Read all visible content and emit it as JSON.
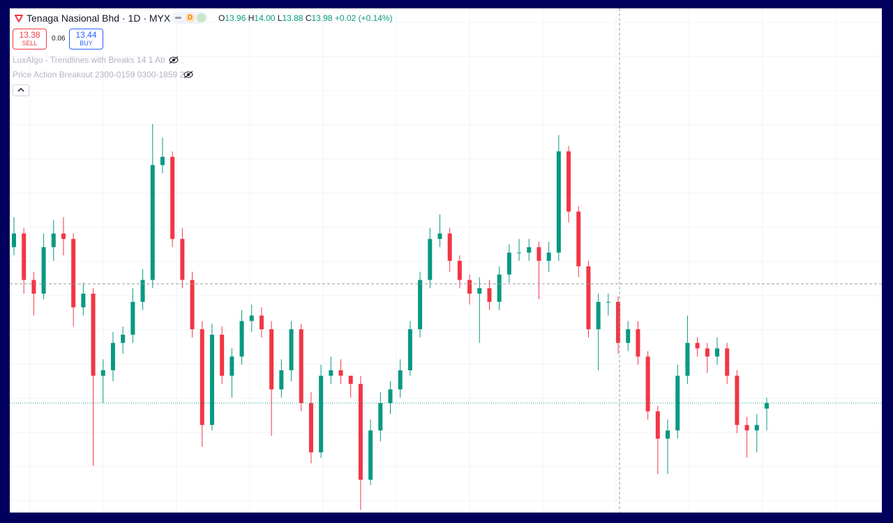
{
  "header": {
    "symbol": "Tenaga Nasional Bhd · 1D · MYX",
    "interval_badge": "D",
    "ohlc": {
      "o_label": "O",
      "o": "13.96",
      "h_label": "H",
      "h": "14.00",
      "l_label": "L",
      "l": "13.88",
      "c_label": "C",
      "c": "13.98",
      "change": "+0.02 (+0.14%)"
    },
    "sell": {
      "price": "13.38",
      "label": "SELL"
    },
    "spread": "0.06",
    "buy": {
      "price": "13.44",
      "label": "BUY"
    }
  },
  "indicators": [
    "LuxAlgo - Trendlines with Breaks 14 1 Atr",
    "Price Action Breakout 2300-0159 0300-1859 2"
  ],
  "chart_data": {
    "type": "candlestick",
    "up_color": "#089981",
    "down_color": "#f23645",
    "ylim": [
      13.58,
      15.02
    ],
    "candles": [
      [
        14.55,
        14.66,
        14.52,
        14.6
      ],
      [
        14.6,
        14.62,
        14.38,
        14.43
      ],
      [
        14.43,
        14.46,
        14.3,
        14.38
      ],
      [
        14.38,
        14.6,
        14.36,
        14.55
      ],
      [
        14.55,
        14.65,
        14.5,
        14.6
      ],
      [
        14.6,
        14.66,
        14.52,
        14.58
      ],
      [
        14.58,
        14.6,
        14.26,
        14.33
      ],
      [
        14.33,
        14.42,
        14.3,
        14.38
      ],
      [
        14.38,
        14.4,
        13.75,
        14.08
      ],
      [
        14.08,
        14.14,
        13.98,
        14.1
      ],
      [
        14.1,
        14.24,
        14.06,
        14.2
      ],
      [
        14.2,
        14.26,
        14.16,
        14.23
      ],
      [
        14.23,
        14.4,
        14.2,
        14.35
      ],
      [
        14.35,
        14.47,
        14.32,
        14.43
      ],
      [
        14.43,
        15.0,
        14.4,
        14.85
      ],
      [
        14.85,
        14.95,
        14.82,
        14.88
      ],
      [
        14.88,
        14.9,
        14.55,
        14.58
      ],
      [
        14.58,
        14.62,
        14.4,
        14.43
      ],
      [
        14.43,
        14.46,
        14.22,
        14.25
      ],
      [
        14.25,
        14.28,
        13.82,
        13.9
      ],
      [
        13.9,
        14.27,
        13.88,
        14.23
      ],
      [
        14.23,
        14.26,
        14.05,
        14.08
      ],
      [
        14.08,
        14.18,
        14.0,
        14.15
      ],
      [
        14.15,
        14.32,
        14.12,
        14.28
      ],
      [
        14.28,
        14.34,
        14.24,
        14.3
      ],
      [
        14.3,
        14.33,
        14.22,
        14.25
      ],
      [
        14.25,
        14.28,
        13.86,
        14.03
      ],
      [
        14.03,
        14.14,
        14.0,
        14.1
      ],
      [
        14.1,
        14.28,
        14.06,
        14.25
      ],
      [
        14.25,
        14.27,
        13.95,
        13.98
      ],
      [
        13.98,
        14.02,
        13.76,
        13.8
      ],
      [
        13.8,
        14.12,
        13.78,
        14.08
      ],
      [
        14.08,
        14.15,
        14.05,
        14.1
      ],
      [
        14.1,
        14.14,
        14.05,
        14.08
      ],
      [
        14.08,
        14.08,
        14.0,
        14.05
      ],
      [
        14.05,
        14.08,
        13.59,
        13.7
      ],
      [
        13.7,
        13.92,
        13.68,
        13.88
      ],
      [
        13.88,
        14.02,
        13.84,
        13.98
      ],
      [
        13.98,
        14.06,
        13.94,
        14.03
      ],
      [
        14.03,
        14.14,
        14.0,
        14.1
      ],
      [
        14.1,
        14.28,
        14.08,
        14.25
      ],
      [
        14.25,
        14.46,
        14.22,
        14.43
      ],
      [
        14.43,
        14.62,
        14.4,
        14.58
      ],
      [
        14.58,
        14.67,
        14.55,
        14.6
      ],
      [
        14.6,
        14.62,
        14.46,
        14.5
      ],
      [
        14.5,
        14.52,
        14.4,
        14.43
      ],
      [
        14.43,
        14.45,
        14.34,
        14.38
      ],
      [
        14.38,
        14.44,
        14.2,
        14.4
      ],
      [
        14.4,
        14.43,
        14.32,
        14.35
      ],
      [
        14.35,
        14.48,
        14.32,
        14.45
      ],
      [
        14.45,
        14.56,
        14.42,
        14.53
      ],
      [
        14.53,
        14.58,
        14.5,
        14.53
      ],
      [
        14.53,
        14.58,
        14.5,
        14.55
      ],
      [
        14.55,
        14.57,
        14.36,
        14.5
      ],
      [
        14.5,
        14.57,
        14.46,
        14.53
      ],
      [
        14.53,
        14.96,
        14.5,
        14.9
      ],
      [
        14.9,
        14.92,
        14.64,
        14.68
      ],
      [
        14.68,
        14.7,
        14.44,
        14.48
      ],
      [
        14.48,
        14.5,
        14.22,
        14.25
      ],
      [
        14.25,
        14.38,
        14.1,
        14.35
      ],
      [
        14.35,
        14.38,
        14.3,
        14.35
      ],
      [
        14.35,
        14.37,
        14.16,
        14.2
      ],
      [
        14.2,
        14.28,
        14.17,
        14.25
      ],
      [
        14.25,
        14.28,
        14.12,
        14.15
      ],
      [
        14.15,
        14.17,
        13.92,
        13.95
      ],
      [
        13.95,
        13.97,
        13.72,
        13.85
      ],
      [
        13.85,
        13.92,
        13.72,
        13.88
      ],
      [
        13.88,
        14.12,
        13.85,
        14.08
      ],
      [
        14.08,
        14.3,
        14.05,
        14.2
      ],
      [
        14.2,
        14.22,
        14.15,
        14.18
      ],
      [
        14.18,
        14.2,
        14.09,
        14.15
      ],
      [
        14.15,
        14.22,
        14.12,
        14.18
      ],
      [
        14.18,
        14.2,
        14.05,
        14.08
      ],
      [
        14.08,
        14.1,
        13.87,
        13.9
      ],
      [
        13.9,
        13.93,
        13.78,
        13.88
      ],
      [
        13.88,
        13.94,
        13.8,
        13.9
      ],
      [
        13.96,
        14.0,
        13.88,
        13.98
      ]
    ]
  }
}
